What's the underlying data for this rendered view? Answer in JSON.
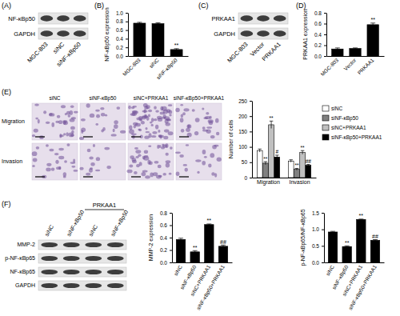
{
  "panel_labels": [
    "(A)",
    "(B)",
    "(C)",
    "(D)",
    "(E)",
    "(F)"
  ],
  "blots": [
    {
      "rows": [
        "NF-κBp50",
        "GAPDH"
      ],
      "lanes": [
        "MGC-803",
        "siNC",
        "siNF-κBp50"
      ]
    },
    {
      "rows": [
        "PRKAA1",
        "GAPDH"
      ],
      "lanes": [
        "MGC-803",
        "Vector",
        "PRKAA1"
      ]
    },
    {
      "rows": [
        "MMP-2",
        "p-NF-κBp65",
        "NF-κBp65",
        "GAPDH"
      ],
      "lanes": [
        "siNC",
        "siNF-κBp50",
        "siNC",
        "siNF-κBp50"
      ],
      "group_label": "PRKAA1"
    }
  ],
  "micrographs": {
    "columns": [
      "siNC",
      "siNF-κBp50",
      "siNC+PRKAA1",
      "siNF-κBp50+PRKAA1"
    ],
    "rows": [
      "Migration",
      "Invasion"
    ]
  },
  "chart_data": [
    {
      "type": "bar",
      "y_label": "NF-κBp50 expression",
      "categories": [
        "MGC-803",
        "siNC",
        "siNF-κBp50"
      ],
      "values": [
        0.76,
        0.75,
        0.15
      ],
      "errors": [
        0.02,
        0.02,
        0.02
      ],
      "annotations": [
        null,
        null,
        "**"
      ],
      "color": "#000000",
      "ylim": [
        0,
        1.0
      ],
      "yticks": [
        {
          "value": 0,
          "label": "0.0"
        },
        0.2,
        0.4,
        0.6,
        0.8,
        {
          "value": 1,
          "label": "1.0"
        }
      ]
    },
    {
      "type": "bar",
      "y_label": "PRKAA1 expression",
      "categories": [
        "MGC-803",
        "Vector",
        "PRKAA1"
      ],
      "values": [
        0.13,
        0.14,
        0.58
      ],
      "errors": [
        0.02,
        0.01,
        0.03
      ],
      "annotations": [
        null,
        null,
        "**"
      ],
      "color": "#000000",
      "ylim": [
        0,
        0.8
      ],
      "yticks": [
        {
          "value": 0,
          "label": "0.0"
        },
        0.2,
        0.4,
        0.6,
        0.8
      ]
    },
    {
      "type": "bar",
      "y_label": "Number of cells",
      "categories": [
        "Migration",
        "Invasion"
      ],
      "series": [
        {
          "name": "siNC",
          "color": "#ffffff",
          "values": [
            88,
            54
          ],
          "errors": [
            5,
            4
          ]
        },
        {
          "name": "siNF-κBp50",
          "color": "#808080",
          "values": [
            47,
            27
          ],
          "errors": [
            5,
            3
          ],
          "annotations": [
            "**",
            "**"
          ]
        },
        {
          "name": "siNC+PRKAA1",
          "color": "#c0c0c0",
          "values": [
            172,
            82
          ],
          "errors": [
            12,
            6
          ],
          "annotations": [
            "**",
            "**"
          ]
        },
        {
          "name": "siNF-κBp50+PRKAA1",
          "color": "#000000",
          "values": [
            67,
            40
          ],
          "errors": [
            6,
            3
          ],
          "annotations": [
            "#",
            "##"
          ]
        }
      ],
      "legend": "right",
      "ylim": [
        0,
        250
      ],
      "yticks": [
        0,
        50,
        100,
        150,
        200,
        250
      ]
    },
    {
      "type": "bar",
      "y_label": "MMP-2 expression",
      "categories": [
        "siNC",
        "siNF-κBp50",
        "siNC+PRKAA1",
        "siNF-κBp50+PRKAA1"
      ],
      "values": [
        0.37,
        0.17,
        0.61,
        0.26
      ],
      "errors": [
        0.02,
        0.02,
        0.01,
        0.02
      ],
      "annotations": [
        null,
        "**",
        "**",
        "##"
      ],
      "color": "#000000",
      "ylim": [
        0,
        0.8
      ],
      "yticks": [
        {
          "value": 0,
          "label": "0.0"
        },
        0.2,
        0.4,
        0.6,
        0.8
      ]
    },
    {
      "type": "bar",
      "y_label": "p-NF-κBp65/NF-κBp65",
      "categories": [
        "siNC",
        "siNF-κBp50",
        "siNC+PRKAA1",
        "siNF-κBp50+PRKAA1"
      ],
      "values": [
        0.92,
        0.48,
        1.3,
        0.67
      ],
      "errors": [
        0.02,
        0.02,
        0.01,
        0.02
      ],
      "annotations": [
        null,
        "**",
        "**",
        "##"
      ],
      "color": "#000000",
      "ylim": [
        0,
        1.5
      ],
      "yticks": [
        {
          "value": 0,
          "label": "0.0"
        },
        0.5,
        {
          "value": 1,
          "label": "1.0"
        },
        1.5
      ]
    }
  ]
}
